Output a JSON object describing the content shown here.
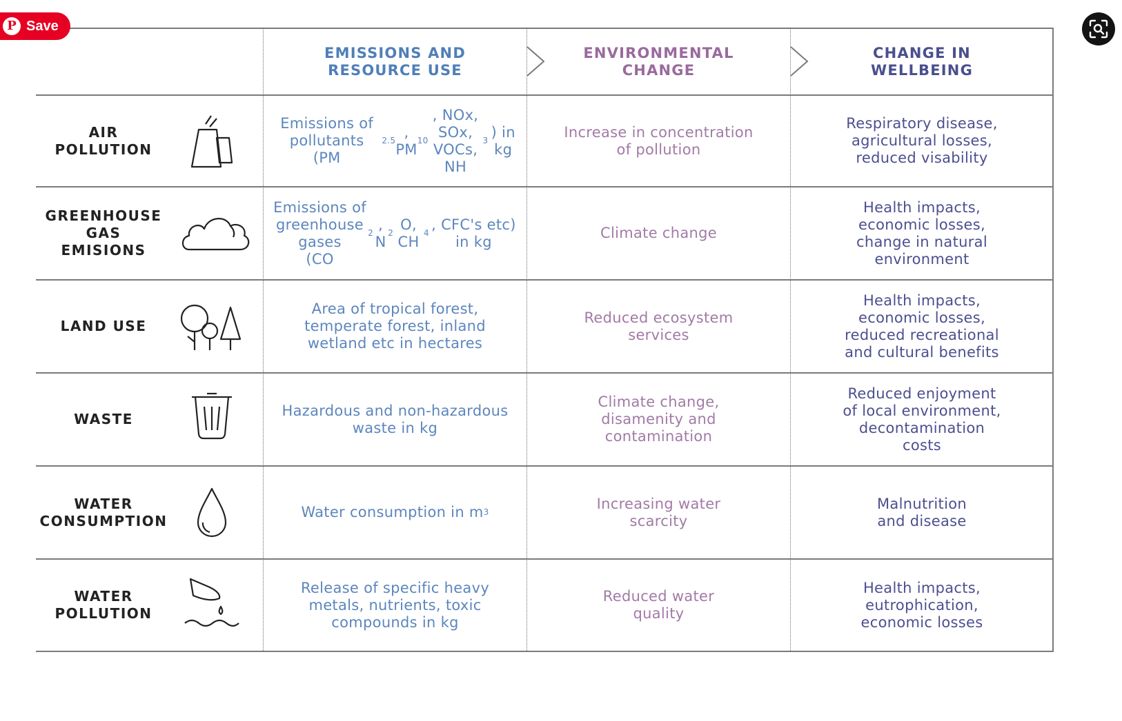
{
  "save_button": {
    "label": "Save",
    "pin_glyph": "P"
  },
  "visual_search_button": {
    "icon": "magnifier-lens-icon"
  },
  "table": {
    "headers": [
      {
        "text": "EMISSIONS AND\nRESOURCE USE",
        "color": "#4f7fb8"
      },
      {
        "text": "ENVIRONMENTAL\nCHANGE",
        "color": "#9a6a9e"
      },
      {
        "text": "CHANGE IN\nWELLBEING",
        "color": "#4a4f8e"
      }
    ],
    "rows": [
      {
        "label": "AIR\nPOLLUTION",
        "icon": "factory-icon",
        "emissions": "Emissions of pollutants\n(PM2.5, PM10, NOx, SOx,\nVOCs, NH3) in kg",
        "environmental": "Increase in concentration\nof pollution",
        "wellbeing": "Respiratory disease,\nagricultural losses,\nreduced visability"
      },
      {
        "label": "GREENHOUSE\nGAS EMISIONS",
        "icon": "cloud-icon",
        "emissions": "Emissions of\ngreenhouse gases\n(CO2, N2O, CH4, CFC's etc) in kg",
        "environmental": "Climate change",
        "wellbeing": "Health impacts,\neconomic losses,\nchange in natural\nenvironment"
      },
      {
        "label": "LAND USE",
        "icon": "trees-icon",
        "emissions": "Area of tropical forest,\ntemperate forest, inland\nwetland etc in hectares",
        "environmental": "Reduced ecosystem\nservices",
        "wellbeing": "Health impacts,\neconomic losses,\nreduced recreational\nand cultural benefits"
      },
      {
        "label": "WASTE",
        "icon": "trash-bin-icon",
        "emissions": "Hazardous and non-hazardous\nwaste in kg",
        "environmental": "Climate change,\ndisamenity and\ncontamination",
        "wellbeing": "Reduced enjoyment\nof local environment,\ndecontamination\ncosts"
      },
      {
        "label": "WATER\nCONSUMPTION",
        "icon": "water-drop-icon",
        "emissions": "Water consumption in m3",
        "environmental": "Increasing water\nscarcity",
        "wellbeing": "Malnutrition\nand disease"
      },
      {
        "label": "WATER\nPOLLUTION",
        "icon": "water-pollution-icon",
        "emissions": "Release of specific heavy\nmetals, nutrients, toxic\ncompounds in kg",
        "environmental": "Reduced water\nquality",
        "wellbeing": "Health impacts,\neutrophication,\neconomic losses"
      }
    ],
    "colors": {
      "emissions": "#5c86bd",
      "environmental": "#a27aa6",
      "wellbeing": "#4c4f8f",
      "label": "#222222",
      "lines": "#7a7a7a"
    }
  }
}
